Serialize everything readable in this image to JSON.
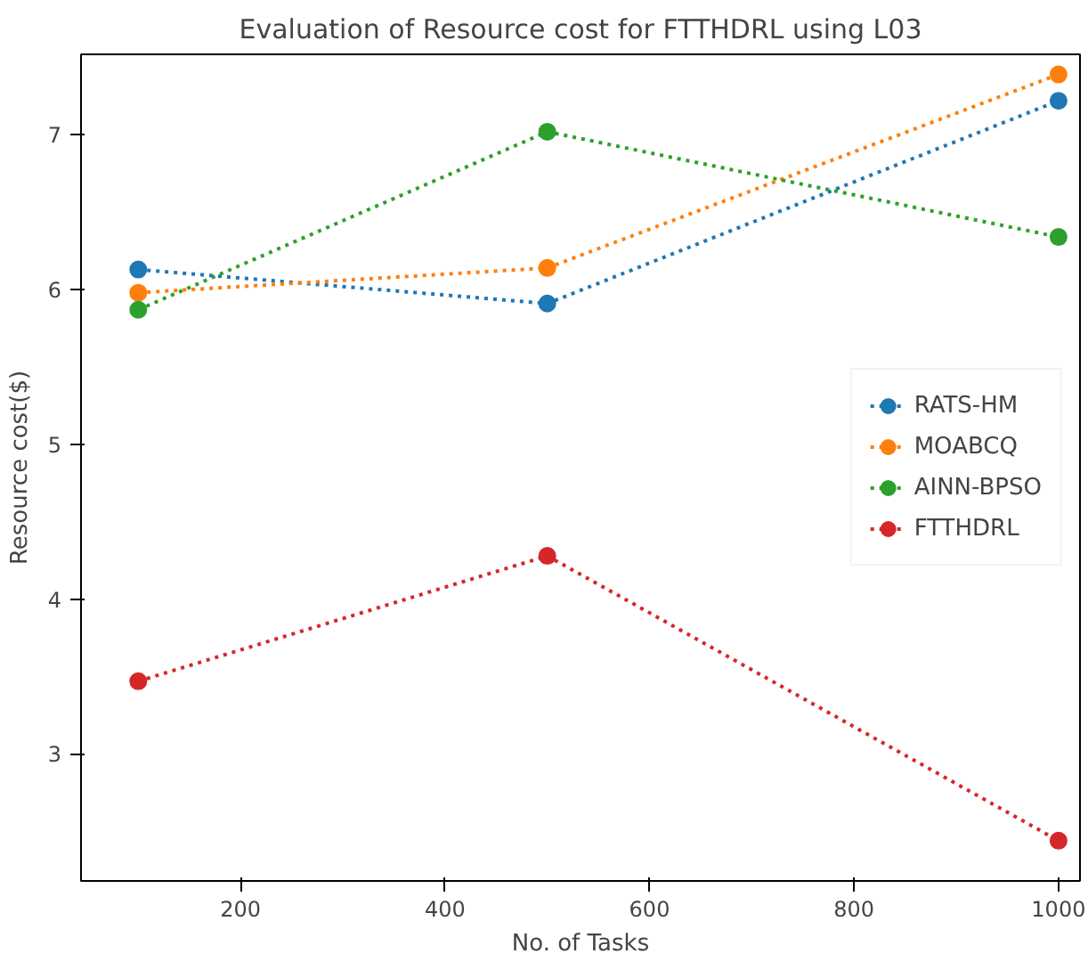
{
  "chart_data": {
    "type": "line",
    "title": "Evaluation of Resource cost for FTTHDRL using L03",
    "xlabel": "No. of Tasks",
    "ylabel": "Resource cost($)",
    "x": [
      100,
      500,
      1000
    ],
    "series": [
      {
        "name": "RATS-HM",
        "color": "#1f77b4",
        "values": [
          6.13,
          5.91,
          7.22
        ]
      },
      {
        "name": "MOABCQ",
        "color": "#ff7f0e",
        "values": [
          5.98,
          6.14,
          7.39
        ]
      },
      {
        "name": "AINN-BPSO",
        "color": "#2ca02c",
        "values": [
          5.87,
          7.02,
          6.34
        ]
      },
      {
        "name": "FTTHDRL",
        "color": "#d62728",
        "values": [
          3.47,
          4.28,
          2.44
        ]
      }
    ],
    "xlim": [
      44,
      1021
    ],
    "ylim": [
      2.18,
      7.52
    ],
    "xticks": [
      200,
      400,
      600,
      800,
      1000
    ],
    "yticks": [
      3,
      4,
      5,
      6,
      7
    ],
    "marker": "circle",
    "line_style": "dotted",
    "legend": "right",
    "grid": false
  }
}
